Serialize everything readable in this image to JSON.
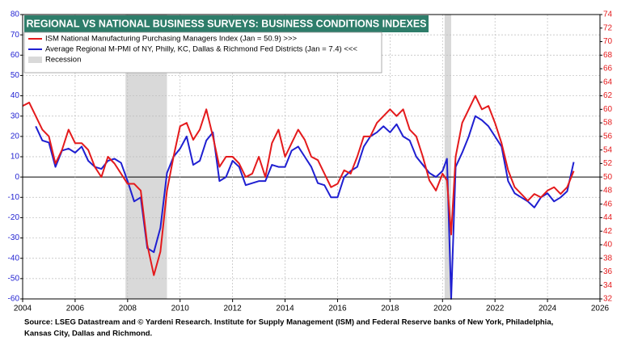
{
  "chart_data": {
    "type": "line",
    "title": "REGIONAL VS NATIONAL BUSINESS SURVEYS: BUSINESS CONDITIONS INDEXES",
    "xlim": [
      2004,
      2026
    ],
    "xticks": [
      2004,
      2006,
      2008,
      2010,
      2012,
      2014,
      2016,
      2018,
      2020,
      2022,
      2024,
      2026
    ],
    "ylim": [
      -60,
      80
    ],
    "yticks": [
      -60,
      -50,
      -40,
      -30,
      -20,
      -10,
      0,
      10,
      20,
      30,
      40,
      50,
      60,
      70,
      80
    ],
    "y2lim": [
      32,
      74
    ],
    "y2ticks": [
      32,
      34,
      36,
      38,
      40,
      42,
      44,
      46,
      48,
      50,
      52,
      54,
      56,
      58,
      60,
      62,
      64,
      66,
      68,
      70,
      72,
      74
    ],
    "grid": true,
    "series": [
      {
        "name": "ISM National Manufacturing Purchasing Managers Index (Jan = 50.9) >>>",
        "color": "#e41a1c",
        "axis": "y2",
        "x": [
          2004,
          2004.25,
          2004.5,
          2004.75,
          2005,
          2005.25,
          2005.5,
          2005.75,
          2006,
          2006.25,
          2006.5,
          2006.75,
          2007,
          2007.25,
          2007.5,
          2007.75,
          2008,
          2008.25,
          2008.5,
          2008.75,
          2009,
          2009.25,
          2009.5,
          2009.75,
          2010,
          2010.25,
          2010.5,
          2010.75,
          2011,
          2011.25,
          2011.5,
          2011.75,
          2012,
          2012.25,
          2012.5,
          2012.75,
          2013,
          2013.25,
          2013.5,
          2013.75,
          2014,
          2014.25,
          2014.5,
          2014.75,
          2015,
          2015.25,
          2015.5,
          2015.75,
          2016,
          2016.25,
          2016.5,
          2016.75,
          2017,
          2017.25,
          2017.5,
          2017.75,
          2018,
          2018.25,
          2018.5,
          2018.75,
          2019,
          2019.25,
          2019.5,
          2019.75,
          2020,
          2020.17,
          2020.33,
          2020.5,
          2020.75,
          2021,
          2021.25,
          2021.5,
          2021.75,
          2022,
          2022.25,
          2022.5,
          2022.75,
          2023,
          2023.25,
          2023.5,
          2023.75,
          2024,
          2024.25,
          2024.5,
          2024.75,
          2025
        ],
        "values": [
          60.5,
          61,
          59,
          57,
          56,
          52,
          54,
          57,
          55,
          55,
          54,
          51.5,
          50,
          53,
          52,
          50.5,
          49,
          49,
          48,
          40,
          35.5,
          39,
          48,
          53,
          57.5,
          58,
          55.5,
          57,
          60,
          56,
          51.5,
          53,
          53,
          52,
          50,
          50.5,
          53,
          50,
          55,
          57,
          53,
          55,
          57,
          55.5,
          53,
          52.5,
          50.5,
          48.5,
          49,
          51,
          50.5,
          53,
          56,
          56,
          58,
          59,
          60,
          59,
          60,
          57,
          56,
          53,
          49.5,
          48,
          50.5,
          49.5,
          41.5,
          53,
          58,
          60,
          62,
          60,
          60.5,
          58,
          55,
          51,
          48.5,
          47.5,
          46.5,
          47.5,
          47,
          48,
          48.5,
          47.5,
          48.5,
          50.9
        ]
      },
      {
        "name": "Average Regional M-PMI of NY, Philly, KC, Dallas & Richmond Fed Districts (Jan = 7.4) <<<",
        "color": "#1f1fd1",
        "axis": "y",
        "x": [
          2004.5,
          2004.75,
          2005,
          2005.25,
          2005.5,
          2005.75,
          2006,
          2006.25,
          2006.5,
          2006.75,
          2007,
          2007.25,
          2007.5,
          2007.75,
          2008,
          2008.25,
          2008.5,
          2008.75,
          2009,
          2009.25,
          2009.5,
          2009.75,
          2010,
          2010.25,
          2010.5,
          2010.75,
          2011,
          2011.25,
          2011.5,
          2011.75,
          2012,
          2012.25,
          2012.5,
          2012.75,
          2013,
          2013.25,
          2013.5,
          2013.75,
          2014,
          2014.25,
          2014.5,
          2014.75,
          2015,
          2015.25,
          2015.5,
          2015.75,
          2016,
          2016.25,
          2016.5,
          2016.75,
          2017,
          2017.25,
          2017.5,
          2017.75,
          2018,
          2018.25,
          2018.5,
          2018.75,
          2019,
          2019.25,
          2019.5,
          2019.75,
          2020,
          2020.17,
          2020.33,
          2020.5,
          2020.75,
          2021,
          2021.25,
          2021.5,
          2021.75,
          2022,
          2022.25,
          2022.5,
          2022.75,
          2023,
          2023.25,
          2023.5,
          2023.75,
          2024,
          2024.25,
          2024.5,
          2024.75,
          2025
        ],
        "values": [
          25,
          18,
          17,
          5,
          13,
          14,
          12,
          15,
          8,
          5,
          4,
          8,
          9,
          7,
          -2,
          -12,
          -10,
          -35,
          -37,
          -25,
          2,
          10,
          14,
          20,
          6,
          8,
          18,
          22,
          -2,
          0,
          8,
          5,
          -4,
          -3,
          -2,
          -2,
          6,
          5,
          5,
          13,
          15,
          10,
          5,
          -3,
          -4,
          -10,
          -10,
          0,
          3,
          5,
          15,
          20,
          22,
          25,
          22,
          26,
          20,
          18,
          10,
          6,
          2,
          0,
          3,
          9,
          -60,
          5,
          12,
          20,
          30,
          28,
          25,
          20,
          15,
          -2,
          -8,
          -10,
          -12,
          -15,
          -10,
          -8,
          -12,
          -10,
          -7,
          7.4
        ]
      }
    ],
    "recession_label": "Recession",
    "recession_color": "#d9d9d9",
    "recessions": [
      {
        "start": 2007.92,
        "end": 2009.5
      },
      {
        "start": 2020.08,
        "end": 2020.33
      }
    ],
    "source": [
      "Source: LSEG Datastream and © Yardeni Research. Institute for Supply Management (ISM) and Federal Reserve banks of New York, Philadelphia,",
      "Kansas City, Dallas and Richmond."
    ]
  }
}
